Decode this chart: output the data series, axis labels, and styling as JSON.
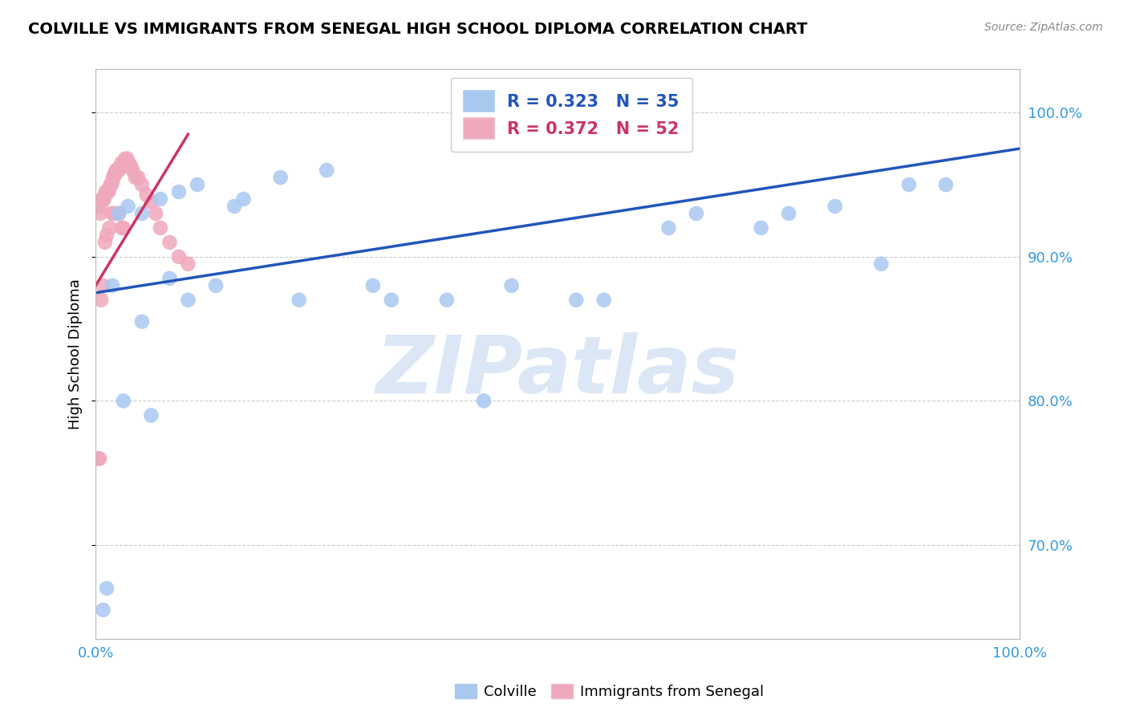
{
  "title": "COLVILLE VS IMMIGRANTS FROM SENEGAL HIGH SCHOOL DIPLOMA CORRELATION CHART",
  "source": "Source: ZipAtlas.com",
  "ylabel": "High School Diploma",
  "legend_label1": "Colville",
  "legend_label2": "Immigrants from Senegal",
  "R1": 0.323,
  "N1": 35,
  "R2": 0.372,
  "N2": 52,
  "colville_color": "#A8C8F0",
  "senegal_color": "#F0A8BC",
  "colville_line_color": "#2255BB",
  "senegal_line_color": "#CC3366",
  "xlim": [
    0.0,
    1.0
  ],
  "ylim": [
    0.635,
    1.03
  ],
  "yticks": [
    0.7,
    0.8,
    0.9,
    1.0
  ],
  "ytick_labels": [
    "70.0%",
    "80.0%",
    "90.0%",
    "100.0%"
  ],
  "xticks": [
    0.0,
    1.0
  ],
  "xtick_labels": [
    "0.0%",
    "100.0%"
  ],
  "colville_x": [
    0.008,
    0.012,
    0.018,
    0.025,
    0.035,
    0.05,
    0.07,
    0.09,
    0.11,
    0.13,
    0.16,
    0.2,
    0.25,
    0.3,
    0.38,
    0.45,
    0.55,
    0.65,
    0.72,
    0.8,
    0.88,
    0.92,
    0.05,
    0.1,
    0.15,
    0.22,
    0.32,
    0.42,
    0.52,
    0.62,
    0.75,
    0.85,
    0.03,
    0.06,
    0.08
  ],
  "colville_y": [
    0.655,
    0.67,
    0.88,
    0.93,
    0.935,
    0.93,
    0.94,
    0.945,
    0.95,
    0.88,
    0.94,
    0.955,
    0.96,
    0.88,
    0.87,
    0.88,
    0.87,
    0.93,
    0.92,
    0.935,
    0.95,
    0.95,
    0.855,
    0.87,
    0.935,
    0.87,
    0.87,
    0.8,
    0.87,
    0.92,
    0.93,
    0.895,
    0.8,
    0.79,
    0.885
  ],
  "senegal_x": [
    0.003,
    0.004,
    0.005,
    0.006,
    0.007,
    0.008,
    0.009,
    0.01,
    0.011,
    0.012,
    0.013,
    0.014,
    0.015,
    0.016,
    0.017,
    0.018,
    0.019,
    0.02,
    0.021,
    0.022,
    0.023,
    0.024,
    0.025,
    0.026,
    0.027,
    0.028,
    0.03,
    0.032,
    0.034,
    0.036,
    0.038,
    0.04,
    0.043,
    0.046,
    0.05,
    0.055,
    0.06,
    0.065,
    0.07,
    0.08,
    0.09,
    0.1,
    0.006,
    0.008,
    0.01,
    0.012,
    0.015,
    0.018,
    0.02,
    0.025,
    0.028,
    0.03
  ],
  "senegal_y": [
    0.76,
    0.76,
    0.93,
    0.935,
    0.94,
    0.94,
    0.94,
    0.943,
    0.945,
    0.945,
    0.945,
    0.945,
    0.948,
    0.95,
    0.95,
    0.952,
    0.955,
    0.957,
    0.957,
    0.96,
    0.96,
    0.96,
    0.96,
    0.962,
    0.962,
    0.965,
    0.965,
    0.968,
    0.968,
    0.965,
    0.963,
    0.96,
    0.955,
    0.955,
    0.95,
    0.943,
    0.938,
    0.93,
    0.92,
    0.91,
    0.9,
    0.895,
    0.87,
    0.88,
    0.91,
    0.915,
    0.92,
    0.93,
    0.93,
    0.93,
    0.92,
    0.92
  ],
  "colville_line_x": [
    0.0,
    1.0
  ],
  "colville_line_y": [
    0.875,
    0.975
  ],
  "senegal_line_x": [
    0.0,
    0.1
  ],
  "senegal_line_y": [
    0.88,
    0.985
  ]
}
